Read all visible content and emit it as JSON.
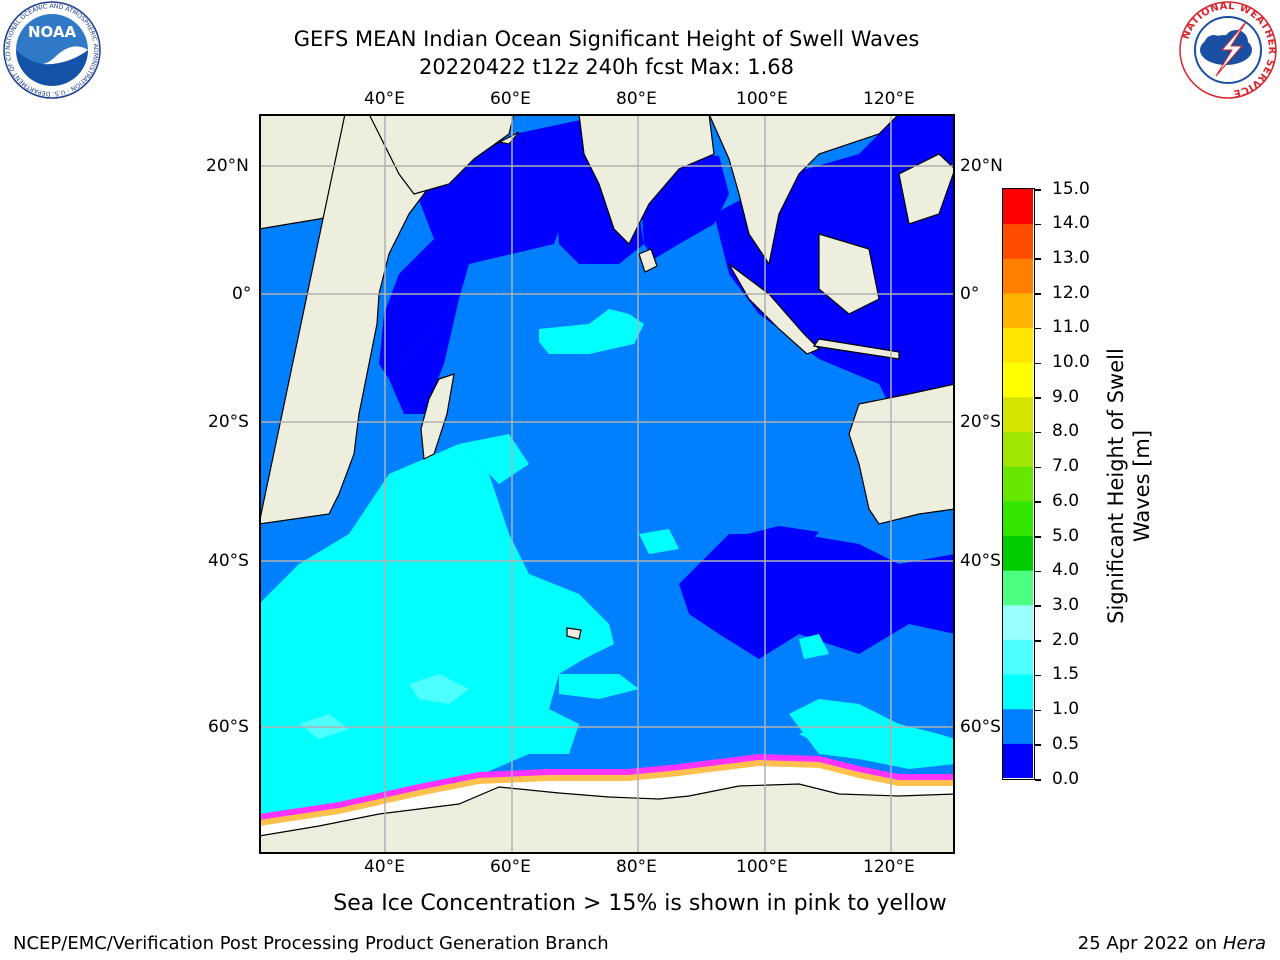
{
  "header": {
    "title_line1": "GEFS MEAN Indian Ocean Significant Height of Swell Waves",
    "title_line2": "20220422 t12z 240h fcst   Max: 1.68"
  },
  "logos": {
    "noaa_text": "NOAA",
    "noaa_ring_text": "NATIONAL OCEANIC AND ATMOSPHERIC ADMINISTRATION · U.S. DEPARTMENT OF COMMERCE",
    "nws_ring_text": "NATIONAL WEATHER SERVICE"
  },
  "map": {
    "lon_labels": [
      "40°E",
      "60°E",
      "80°E",
      "100°E",
      "120°E"
    ],
    "lat_labels": [
      "20°N",
      "0°",
      "20°S",
      "40°S",
      "60°S"
    ],
    "colors": {
      "land": "#EEEEDE",
      "ocean_low": "#0000FF",
      "ocean_mid": "#0080FF",
      "ocean_high": "#00FFFF",
      "ocean_higher": "#4DFFFF",
      "ice_white": "#FFFFFF",
      "ice_pink": "#FF33FF",
      "ice_yellow": "#FFC04D",
      "grid": "#B0B0B0"
    }
  },
  "colorbar": {
    "title_line1": "Significant Height of Swell",
    "title_line2": "Waves [m]",
    "levels": [
      "0.0",
      "0.5",
      "1.0",
      "1.5",
      "2.0",
      "3.0",
      "4.0",
      "5.0",
      "6.0",
      "7.0",
      "8.0",
      "9.0",
      "10.0",
      "11.0",
      "12.0",
      "13.0",
      "14.0",
      "15.0"
    ],
    "colors": [
      "#0000FF",
      "#0080FF",
      "#00FFFF",
      "#4DFFFF",
      "#99FFFF",
      "#4DFF80",
      "#00CC00",
      "#33E600",
      "#66E600",
      "#A0E600",
      "#D4E600",
      "#FFFF00",
      "#FFE600",
      "#FFB300",
      "#FF8000",
      "#FF4D00",
      "#FF0000"
    ]
  },
  "footer": {
    "note": "Sea Ice Concentration > 15% is shown in pink to yellow",
    "credit": "NCEP/EMC/Verification Post Processing Product Generation Branch",
    "date_prefix": "25 Apr 2022 on ",
    "date_host": "Hera"
  }
}
